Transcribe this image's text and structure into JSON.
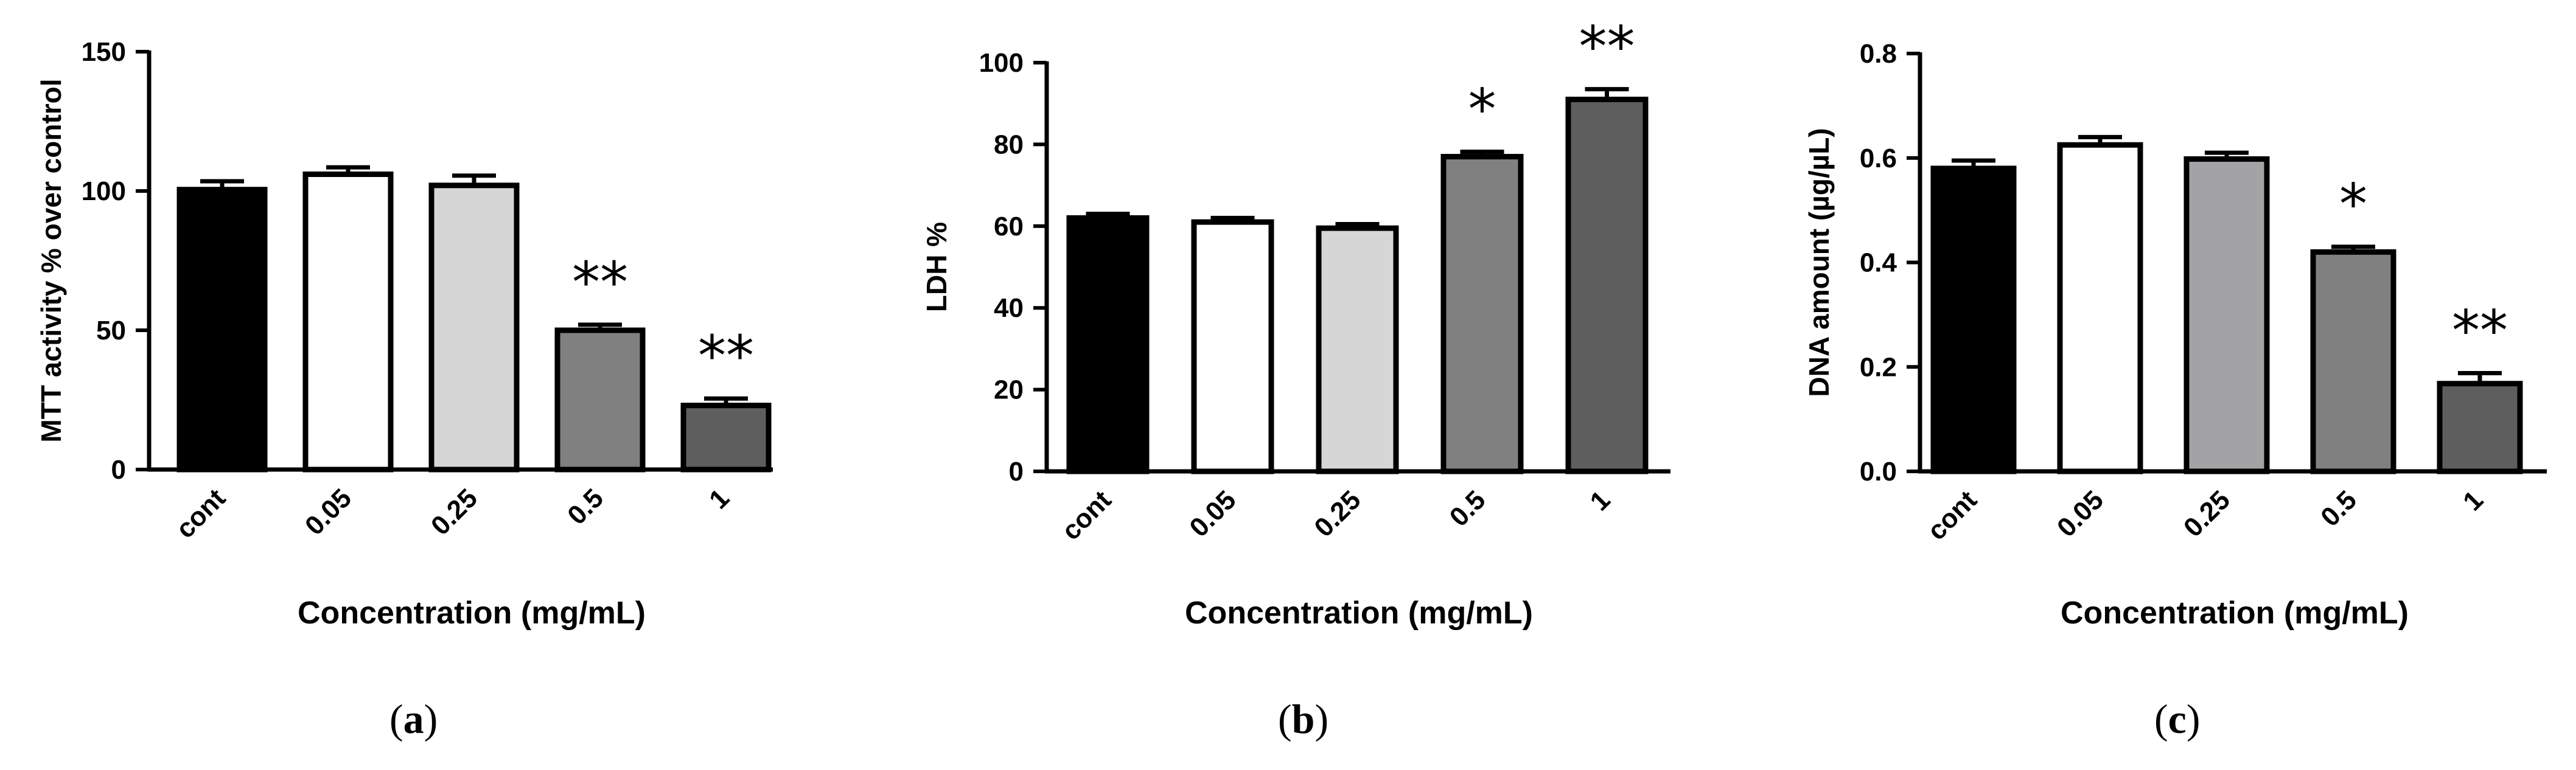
{
  "chart_data": [
    {
      "type": "bar",
      "panel_label": "(a)",
      "panel_letter": "a",
      "categories": [
        "cont",
        "0.05",
        "0.25",
        "0.5",
        "1"
      ],
      "values": [
        100.5,
        106,
        102,
        50,
        23
      ],
      "errors": [
        3,
        2.5,
        3.5,
        2,
        2.5
      ],
      "significance": [
        "",
        "",
        "",
        "**",
        "**"
      ],
      "bar_colors": [
        "#000000",
        "#ffffff",
        "#d6d6d6",
        "#808080",
        "#5e5e5e"
      ],
      "xlabel": "Concentration (mg/mL)",
      "ylabel": "MTT activity % over control",
      "ylim": [
        0,
        150
      ],
      "yticks": [
        0,
        50,
        100,
        150
      ],
      "ytick_labels": [
        "0",
        "50",
        "100",
        "150"
      ]
    },
    {
      "type": "bar",
      "panel_label": "(b)",
      "panel_letter": "b",
      "categories": [
        "cont",
        "0.05",
        "0.25",
        "0.5",
        "1"
      ],
      "values": [
        62,
        61,
        59.5,
        77,
        91
      ],
      "errors": [
        1,
        1,
        1,
        1.2,
        2.5
      ],
      "significance": [
        "",
        "",
        "",
        "*",
        "**"
      ],
      "bar_colors": [
        "#000000",
        "#ffffff",
        "#d6d6d6",
        "#808080",
        "#5e5e5e"
      ],
      "xlabel": "Concentration (mg/mL)",
      "ylabel": "LDH %",
      "ylim": [
        0,
        100
      ],
      "yticks": [
        0,
        20,
        40,
        60,
        80,
        100
      ],
      "ytick_labels": [
        "0",
        "20",
        "40",
        "60",
        "80",
        "100"
      ]
    },
    {
      "type": "bar",
      "panel_label": "(c)",
      "panel_letter": "c",
      "categories": [
        "cont",
        "0.05",
        "0.25",
        "0.5",
        "1"
      ],
      "values": [
        0.58,
        0.625,
        0.598,
        0.42,
        0.168
      ],
      "errors": [
        0.015,
        0.015,
        0.012,
        0.01,
        0.02
      ],
      "significance": [
        "",
        "",
        "",
        "*",
        "**"
      ],
      "bar_colors": [
        "#000000",
        "#ffffff",
        "#a3a3a6",
        "#808080",
        "#5e5e5e"
      ],
      "xlabel": "Concentration (mg/mL)",
      "ylabel": "DNA amount (µg/µL)",
      "ylim": [
        0,
        0.8
      ],
      "yticks": [
        0,
        0.2,
        0.4,
        0.6,
        0.8
      ],
      "ytick_labels": [
        "0.0",
        "0.2",
        "0.4",
        "0.6",
        "0.8"
      ]
    }
  ]
}
